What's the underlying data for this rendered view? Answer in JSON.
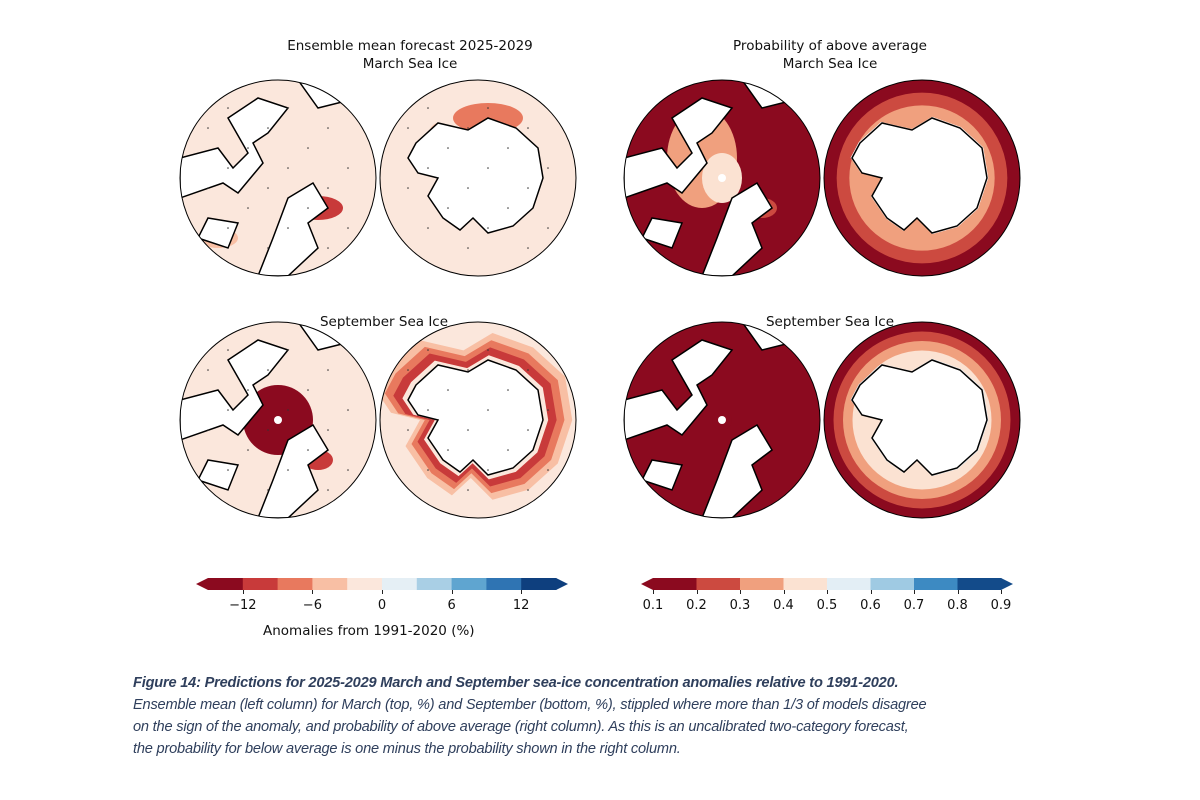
{
  "figure": {
    "left_title_line1": "Ensemble mean forecast 2025-2029",
    "left_title_line2": "March Sea Ice",
    "right_title_line1": "Probability of above average",
    "right_title_line2": "March Sea Ice",
    "left_bottom_title": "September Sea Ice",
    "right_bottom_title": "September Sea Ice",
    "panels": [
      {
        "column": "ensemble mean",
        "month": "March",
        "hemisphere": "Arctic"
      },
      {
        "column": "ensemble mean",
        "month": "March",
        "hemisphere": "Antarctic"
      },
      {
        "column": "probability",
        "month": "March",
        "hemisphere": "Arctic"
      },
      {
        "column": "probability",
        "month": "March",
        "hemisphere": "Antarctic"
      },
      {
        "column": "ensemble mean",
        "month": "September",
        "hemisphere": "Arctic"
      },
      {
        "column": "ensemble mean",
        "month": "September",
        "hemisphere": "Antarctic"
      },
      {
        "column": "probability",
        "month": "September",
        "hemisphere": "Arctic"
      },
      {
        "column": "probability",
        "month": "September",
        "hemisphere": "Antarctic"
      }
    ]
  },
  "colorbar_left": {
    "ticks": [
      "−12",
      "−6",
      "0",
      "6",
      "12"
    ],
    "tick_values": [
      -12,
      -6,
      0,
      6,
      12
    ],
    "range": [
      -15,
      15
    ],
    "label": "Anomalies from 1991-2020 (%)",
    "colors": [
      "#8b0a1f",
      "#c83a3a",
      "#e8795e",
      "#f8bfa4",
      "#fbe7dc",
      "#e5eff5",
      "#a9cfe5",
      "#5fa5d0",
      "#2f74b3",
      "#0e3f7e"
    ]
  },
  "colorbar_right": {
    "ticks": [
      "0.1",
      "0.2",
      "0.3",
      "0.4",
      "0.5",
      "0.6",
      "0.7",
      "0.8",
      "0.9"
    ],
    "range": [
      0.1,
      0.9
    ],
    "colors": [
      "#8b0a1f",
      "#cc4a40",
      "#f0a07e",
      "#fbe2d2",
      "#e3eef5",
      "#9fcae3",
      "#3d8ac2",
      "#134b8a"
    ]
  },
  "caption": {
    "bold": "Figure 14: Predictions for 2025-2029 March and September sea-ice concentration anomalies relative to 1991-2020.",
    "line2": "Ensemble mean (left column) for March (top, %) and September (bottom, %), stippled where more than 1/3 of models disagree",
    "line3": "on the sign of the anomaly, and probability of above average (right column). As this is an uncalibrated two-category forecast,",
    "line4": "the probability for below average is one minus the probability shown in the right column."
  }
}
